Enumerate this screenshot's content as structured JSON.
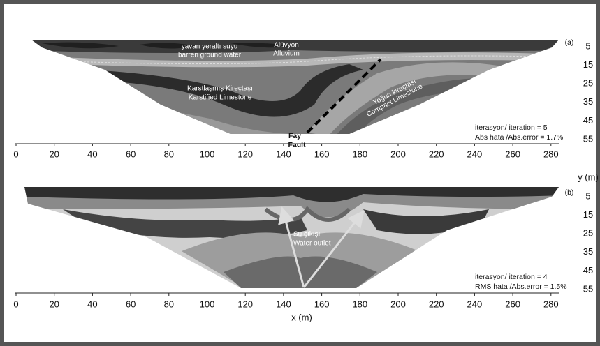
{
  "panels": [
    {
      "tag": "(a)",
      "labels": [
        "yavan yeraltı suyu",
        "barren ground water",
        "Alüvyon",
        "Alluvium",
        "Karstlaşmış Kireçtaşı",
        "Karstified Limestone",
        "Yoğun kireçtaşı",
        "Compact Limestone",
        "Fay",
        "Fault"
      ],
      "iteration": "iterasyon/ iteration = 5",
      "error": "Abs hata /Abs.error = 1.7%"
    },
    {
      "tag": "(b)",
      "labels": [
        "Su çıkışı",
        "Water outlet"
      ],
      "iteration": "iterasyon/ iteration = 4",
      "error": "RMS hata /Abs.error = 1.5%"
    }
  ],
  "x_axis": {
    "title": "x (m)",
    "ticks": [
      0,
      20,
      40,
      60,
      80,
      100,
      120,
      140,
      160,
      180,
      200,
      220,
      240,
      260,
      280
    ]
  },
  "y_axis": {
    "title": "y (m)",
    "ticks": [
      5,
      15,
      25,
      35,
      45,
      55
    ]
  }
}
